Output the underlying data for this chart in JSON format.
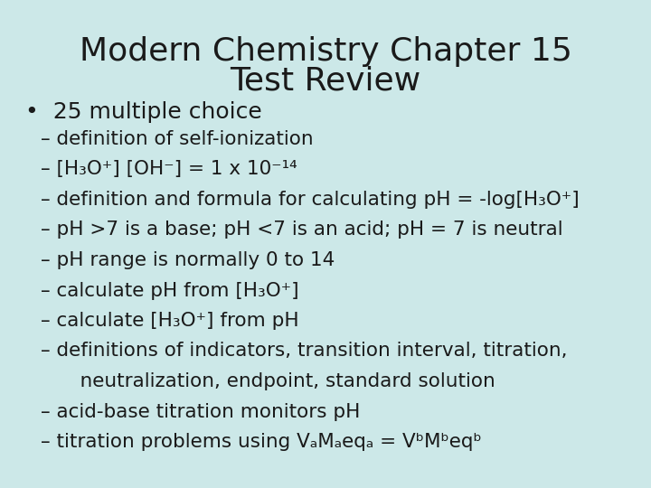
{
  "title_line1": "Modern Chemistry Chapter 15",
  "title_line2": "Test Review",
  "background_color": "#cce8e8",
  "title_fontsize": 26,
  "text_color": "#1a1a1a",
  "bullet_fontsize": 18,
  "dash_fontsize": 15.5,
  "bullet_text": "•  25 multiple choice",
  "dash_prefix": "– ",
  "dash_items": [
    "definition of self-ionization",
    "[H₃O⁺] [OH⁻] = 1 x 10⁻¹⁴",
    "definition and formula for calculating pH = -log[H₃O⁺]",
    "pH >7 is a base; pH <7 is an acid; pH = 7 is neutral",
    "pH range is normally 0 to 14",
    "calculate pH from [H₃O⁺]",
    "calculate [H₃O⁺] from pH",
    "definitions of indicators, transition interval, titration,",
    "    neutralization, endpoint, standard solution",
    "acid-base titration monitors pH",
    "titration problems using VₐMₐeqₐ = VᵇMᵇeqᵇ"
  ],
  "dash_prefixes": [
    "– ",
    "– ",
    "– ",
    "– ",
    "– ",
    "– ",
    "– ",
    "– ",
    "",
    "– ",
    "– "
  ]
}
